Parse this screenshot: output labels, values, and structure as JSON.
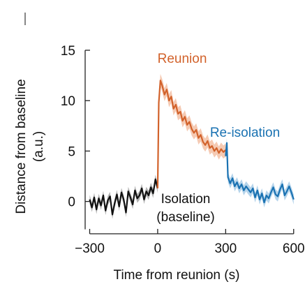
{
  "chart_data": {
    "type": "line",
    "xlabel": "Time from reunion (s)",
    "ylabel": "Distance from baseline",
    "ylabel_unit": "(a.u.)",
    "xlim": [
      -320,
      610
    ],
    "ylim": [
      -3,
      15
    ],
    "x_ticks": [
      -300,
      0,
      300,
      600
    ],
    "x_tick_labels": [
      "−300",
      "0",
      "300",
      "600"
    ],
    "y_ticks": [
      0,
      5,
      10,
      15
    ],
    "y_tick_labels": [
      "0",
      "5",
      "10",
      "15"
    ],
    "grid": false,
    "legend": "none",
    "series": [
      {
        "name": "Isolation (baseline)",
        "label_lines": [
          "Isolation",
          "(baseline)"
        ],
        "color": "#111111",
        "band_color": "#9a9a9a",
        "x": [
          -300,
          -290,
          -280,
          -270,
          -260,
          -250,
          -240,
          -230,
          -220,
          -210,
          -200,
          -190,
          -180,
          -170,
          -160,
          -150,
          -140,
          -130,
          -120,
          -110,
          -100,
          -90,
          -80,
          -70,
          -60,
          -50,
          -40,
          -30,
          -20,
          -10,
          0
        ],
        "y": [
          0.2,
          -0.6,
          0.4,
          -0.8,
          0.3,
          -0.4,
          0.6,
          -0.9,
          0.1,
          0.5,
          -1.3,
          -0.2,
          0.7,
          -0.5,
          0.9,
          0.2,
          -1.1,
          1.0,
          0.4,
          -0.3,
          1.1,
          0.3,
          0.6,
          1.3,
          0.2,
          1.0,
          0.6,
          1.4,
          0.8,
          2.2,
          1.3
        ],
        "err": 0.45
      },
      {
        "name": "Reunion",
        "color": "#d2622b",
        "band_color": "#f2b89a",
        "x": [
          0,
          5,
          12,
          20,
          30,
          40,
          50,
          60,
          70,
          80,
          90,
          100,
          110,
          120,
          130,
          140,
          150,
          160,
          170,
          180,
          190,
          200,
          210,
          220,
          230,
          240,
          250,
          260,
          270,
          280,
          290,
          300
        ],
        "y": [
          1.3,
          9.8,
          12.0,
          11.5,
          10.6,
          11.1,
          10.0,
          10.4,
          9.2,
          9.6,
          8.7,
          8.9,
          8.0,
          8.4,
          7.6,
          7.9,
          7.2,
          6.8,
          7.1,
          6.3,
          6.6,
          5.9,
          5.6,
          6.0,
          5.3,
          5.5,
          5.0,
          5.3,
          4.8,
          5.2,
          4.9,
          5.1
        ],
        "err": 0.65
      },
      {
        "name": "Re-isolation",
        "color": "#1a72b2",
        "band_color": "#9cc6e4",
        "x": [
          300,
          305,
          310,
          320,
          330,
          340,
          350,
          360,
          370,
          380,
          390,
          400,
          410,
          420,
          430,
          440,
          450,
          460,
          470,
          480,
          490,
          500,
          510,
          520,
          530,
          540,
          550,
          560,
          570,
          580,
          590,
          600
        ],
        "y": [
          4.5,
          5.8,
          2.4,
          1.8,
          2.3,
          1.5,
          1.9,
          1.3,
          1.7,
          1.1,
          1.5,
          1.2,
          0.9,
          1.3,
          0.4,
          1.1,
          0.2,
          0.8,
          -0.1,
          0.6,
          0.3,
          0.9,
          1.4,
          0.7,
          0.5,
          1.2,
          1.7,
          0.6,
          1.0,
          1.5,
          0.9,
          0.2
        ],
        "err": 0.5
      }
    ]
  }
}
